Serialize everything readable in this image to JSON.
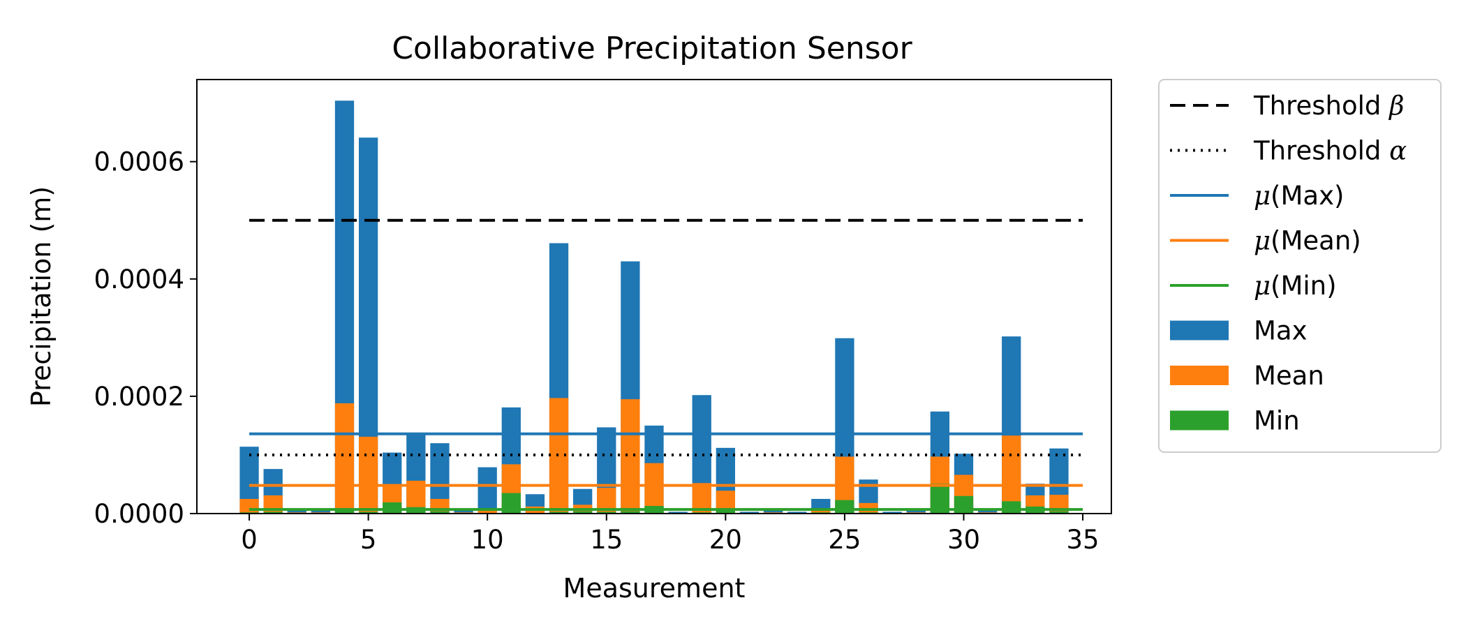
{
  "chart_data": {
    "type": "bar",
    "title": "Collaborative Precipitation Sensor",
    "xlabel": "Measurement",
    "ylabel": "Precipitation (m)",
    "xlim": [
      -2.2,
      36.2
    ],
    "ylim": [
      0,
      0.00074
    ],
    "x_ticks": [
      0,
      5,
      10,
      15,
      20,
      25,
      30,
      35
    ],
    "y_ticks": [
      0.0,
      0.0002,
      0.0004,
      0.0006
    ],
    "y_tick_labels": [
      "0.0000",
      "0.0002",
      "0.0004",
      "0.0006"
    ],
    "legend_position": "outside-right",
    "categories": [
      0,
      1,
      2,
      3,
      4,
      5,
      6,
      7,
      8,
      9,
      10,
      11,
      12,
      13,
      14,
      15,
      16,
      17,
      18,
      19,
      20,
      21,
      22,
      23,
      24,
      25,
      26,
      27,
      28,
      29,
      30,
      31,
      32,
      33,
      34
    ],
    "series": [
      {
        "name": "Max",
        "color": "#1f77b4",
        "values": [
          0.000114,
          7.6e-05,
          6e-06,
          6e-06,
          0.000704,
          0.000641,
          0.000104,
          0.000138,
          0.00012,
          6e-06,
          7.9e-05,
          0.000181,
          3.3e-05,
          0.000461,
          4.2e-05,
          0.000147,
          0.00043,
          0.00015,
          3e-06,
          0.000202,
          0.000112,
          3e-06,
          7e-06,
          3e-06,
          2.5e-05,
          0.000299,
          5.8e-05,
          3e-06,
          7e-06,
          0.000174,
          0.000102,
          5e-06,
          0.000302,
          5.1e-05,
          0.000111
        ]
      },
      {
        "name": "Mean",
        "color": "#ff7f0e",
        "values": [
          2.5e-05,
          3.1e-05,
          2e-06,
          2e-06,
          0.000188,
          0.000131,
          4.6e-05,
          5.6e-05,
          2.5e-05,
          2e-06,
          7e-06,
          8.4e-05,
          1.2e-05,
          0.000197,
          1.5e-05,
          4.4e-05,
          0.000195,
          8.6e-05,
          1e-06,
          5.2e-05,
          3.9e-05,
          1e-06,
          2e-06,
          1e-06,
          8e-06,
          9.7e-05,
          1.8e-05,
          1e-06,
          2e-06,
          9.7e-05,
          6.6e-05,
          2e-06,
          0.000133,
          3.1e-05,
          3.2e-05
        ]
      },
      {
        "name": "Min",
        "color": "#2ca02c",
        "values": [
          2e-06,
          3e-06,
          0.0,
          0.0,
          6e-06,
          3e-06,
          1.9e-05,
          1.1e-05,
          4e-06,
          0.0,
          1e-06,
          3.5e-05,
          1e-06,
          3e-06,
          4e-06,
          3e-06,
          4e-06,
          1.3e-05,
          0.0,
          2e-06,
          6e-06,
          0.0,
          0.0,
          0.0,
          2e-06,
          2.3e-05,
          2e-06,
          0.0,
          0.0,
          5.1e-05,
          3e-05,
          0.0,
          2.1e-05,
          1.2e-05,
          4e-06
        ]
      }
    ],
    "lines": [
      {
        "name": "Threshold β",
        "label_prefix": "Threshold ",
        "label_symbol": "β",
        "label_suffix": "",
        "value": 0.0005,
        "style": "dashed",
        "color": "#000000",
        "x_range": [
          0,
          35
        ]
      },
      {
        "name": "Threshold α",
        "label_prefix": "Threshold ",
        "label_symbol": "α",
        "label_suffix": "",
        "value": 0.0001,
        "style": "dotted",
        "color": "#000000",
        "x_range": [
          0,
          35
        ]
      },
      {
        "name": "μ(Max)",
        "label_prefix": "",
        "label_symbol": "μ",
        "label_suffix": "(Max)",
        "value": 0.000136,
        "style": "solid",
        "color": "#1f77b4",
        "x_range": [
          0,
          35
        ]
      },
      {
        "name": "μ(Mean)",
        "label_prefix": "",
        "label_symbol": "μ",
        "label_suffix": "(Mean)",
        "value": 4.8e-05,
        "style": "solid",
        "color": "#ff7f0e",
        "x_range": [
          0,
          35
        ]
      },
      {
        "name": "μ(Min)",
        "label_prefix": "",
        "label_symbol": "μ",
        "label_suffix": "(Min)",
        "value": 7e-06,
        "style": "solid",
        "color": "#2ca02c",
        "x_range": [
          0,
          35
        ]
      }
    ]
  }
}
